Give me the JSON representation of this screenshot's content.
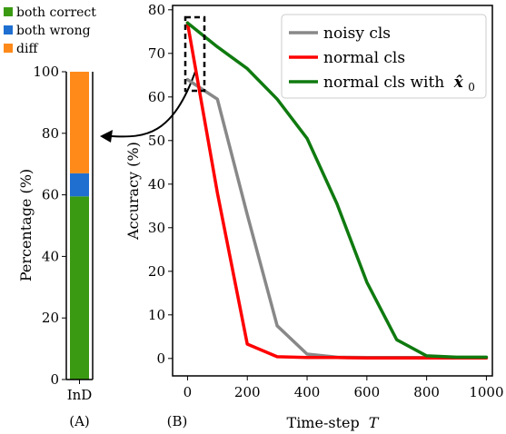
{
  "colors": {
    "both_correct": "#3a9a12",
    "both_wrong": "#1f6fd1",
    "diff": "#ff8a1a",
    "noisy_cls": "#888888",
    "normal_cls": "#ff0000",
    "normal_cls_x0": "#0f7a0f"
  },
  "panel_a": {
    "panel_label": "(A)",
    "ylabel": "Percentage (%)",
    "legend": [
      "both correct",
      "both wrong",
      "diff"
    ],
    "chart_data": {
      "type": "bar",
      "stacked": true,
      "categories": [
        "InD"
      ],
      "series": [
        {
          "name": "both correct",
          "values": [
            59.5
          ]
        },
        {
          "name": "both wrong",
          "values": [
            7.5
          ]
        },
        {
          "name": "diff",
          "values": [
            33.0
          ]
        }
      ],
      "ylim": [
        0,
        100
      ],
      "yticks": [
        0,
        20,
        40,
        60,
        80,
        100
      ],
      "legend_position": "top-left"
    }
  },
  "panel_b": {
    "panel_label": "(B)",
    "xlabel": "Time-step",
    "xlabel_var": "T",
    "ylabel": "Accuracy (%)",
    "legend": [
      "noisy cls",
      "normal cls",
      "normal cls with"
    ],
    "legend_math": "x̂",
    "legend_math_sub": "0",
    "chart_data": {
      "type": "line",
      "x": [
        0,
        100,
        200,
        300,
        400,
        500,
        600,
        700,
        800,
        900,
        1000
      ],
      "series": [
        {
          "name": "noisy cls",
          "values": [
            64,
            59.5,
            33,
            7.5,
            1,
            0.3,
            0.2,
            0.2,
            0.2,
            0.2,
            0.2
          ]
        },
        {
          "name": "normal cls",
          "values": [
            77,
            38,
            3.3,
            0.4,
            0.2,
            0.2,
            0.1,
            0.1,
            0.1,
            0.1,
            0.1
          ]
        },
        {
          "name": "normal cls with x̂0",
          "values": [
            77,
            71.5,
            66.5,
            59.5,
            50.5,
            35.5,
            17.5,
            4.3,
            0.6,
            0.3,
            0.3
          ]
        }
      ],
      "xlim": [
        -50,
        1020
      ],
      "ylim": [
        -4,
        81
      ],
      "xticks": [
        0,
        200,
        400,
        600,
        800,
        1000
      ],
      "yticks": [
        0,
        10,
        20,
        30,
        40,
        50,
        60,
        70,
        80
      ],
      "legend_position": "top-right"
    }
  }
}
